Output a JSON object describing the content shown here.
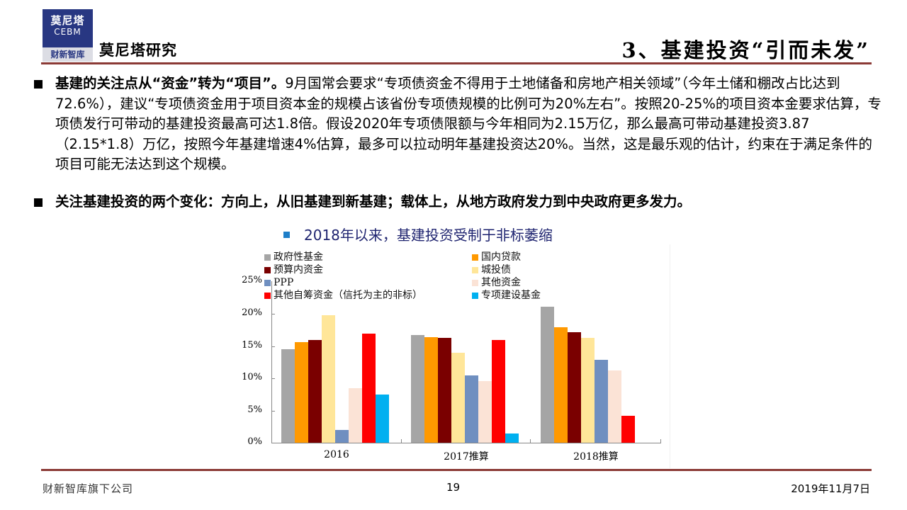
{
  "header": {
    "logo": {
      "line1": "莫尼塔",
      "line2": "CEBM",
      "line3": "财新智库"
    },
    "brand": "莫尼塔研究",
    "slide_title": "3、基建投资“引而未发”"
  },
  "bullets": [
    {
      "bold": "基建的关注点从“资金”转为“项目”。",
      "text": "9月国常会要求“专项债资金不得用于土地储备和房地产相关领域”（今年土储和棚改占比达到72.6%），建议“专项债资金用于项目资本金的规模占该省份专项债规模的比例可为20%左右”。按照20-25%的项目资本金要求估算，专项债发行可带动的基建投资最高可达1.8倍。假设2020年专项债限额与今年相同为2.15万亿，那么最高可带动基建投资3.87（2.15*1.8）万亿，按照今年基建增速4%估算，最多可以拉动明年基建投资达20%。当然，这是最乐观的估计，约束在于满足条件的项目可能无法达到这个规模。"
    },
    {
      "bold": "关注基建投资的两个变化：方向上，从旧基建到新基建；载体上，从地方政府发力到中央政府更多发力。",
      "text": ""
    }
  ],
  "chart_title": "2018年以来，基建投资受制于非标萎缩",
  "chart_data": {
    "type": "bar",
    "title": "2018年以来，基建投资受制于非标萎缩",
    "categories": [
      "2016",
      "2017推算",
      "2018推算"
    ],
    "xlabel": "",
    "ylabel": "",
    "ylim": [
      0,
      25
    ],
    "yticks": [
      "0%",
      "5%",
      "10%",
      "15%",
      "20%",
      "25%"
    ],
    "grid": false,
    "legend_position": "top-inside",
    "series": [
      {
        "name": "政府性基金",
        "color": "#a5a5a5",
        "values": [
          14.4,
          16.6,
          21.0
        ]
      },
      {
        "name": "国内贷款",
        "color": "#ff9900",
        "values": [
          15.5,
          16.3,
          17.8
        ]
      },
      {
        "name": "预算内资金",
        "color": "#7a0000",
        "values": [
          15.9,
          16.2,
          17.0
        ]
      },
      {
        "name": "城投债",
        "color": "#ffe699",
        "values": [
          19.7,
          13.9,
          16.2
        ]
      },
      {
        "name": "PPP",
        "color": "#6f8fc0",
        "values": [
          2.0,
          10.4,
          12.8
        ]
      },
      {
        "name": "其他资金",
        "color": "#fbe3d6",
        "values": [
          8.4,
          9.5,
          11.1
        ]
      },
      {
        "name": "其他自筹资金（信托为主的非标）",
        "color": "#ff0000",
        "values": [
          16.8,
          15.9,
          4.1
        ]
      },
      {
        "name": "专项建设基金",
        "color": "#00b0f0",
        "values": [
          7.4,
          1.4,
          0
        ]
      }
    ]
  },
  "footer": {
    "left": "财新智库旗下公司",
    "page": "19",
    "date": "2019年11月7日"
  }
}
